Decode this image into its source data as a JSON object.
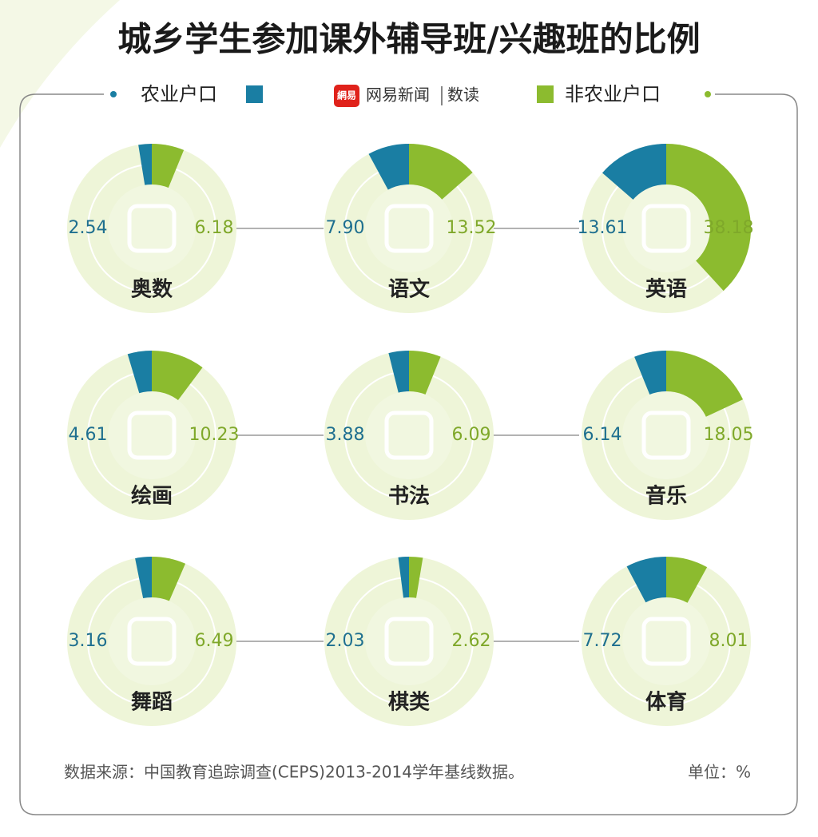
{
  "chart_data": {
    "type": "radial",
    "title": "城乡学生参加课外辅导班/兴趣班的比例",
    "brand": "网易新闻",
    "brand_section": "数读",
    "brand_icon": "網易",
    "categories": [
      "奥数",
      "语文",
      "英语",
      "绘画",
      "书法",
      "音乐",
      "舞蹈",
      "棋类",
      "体育"
    ],
    "series": [
      {
        "name": "农业户口",
        "color": "#1a7ea3",
        "values": [
          2.54,
          7.9,
          13.61,
          4.61,
          3.88,
          6.14,
          3.16,
          2.03,
          7.72
        ],
        "value_labels": [
          "2.54",
          "7.90",
          "13.61",
          "4.61",
          "3.88",
          "6.14",
          "3.16",
          "2.03",
          "7.72"
        ]
      },
      {
        "name": "非农业户口",
        "color": "#8cbb2f",
        "values": [
          6.18,
          13.52,
          38.18,
          10.23,
          6.09,
          18.05,
          6.49,
          2.62,
          8.01
        ],
        "value_labels": [
          "6.18",
          "13.52",
          "38.18",
          "10.23",
          "6.09",
          "18.05",
          "6.49",
          "2.62",
          "8.01"
        ]
      }
    ],
    "ylim": [
      0,
      100
    ],
    "source": "数据来源：中国教育追踪调查(CEPS)2013-2014学年基线数据。",
    "unit": "单位：%"
  }
}
